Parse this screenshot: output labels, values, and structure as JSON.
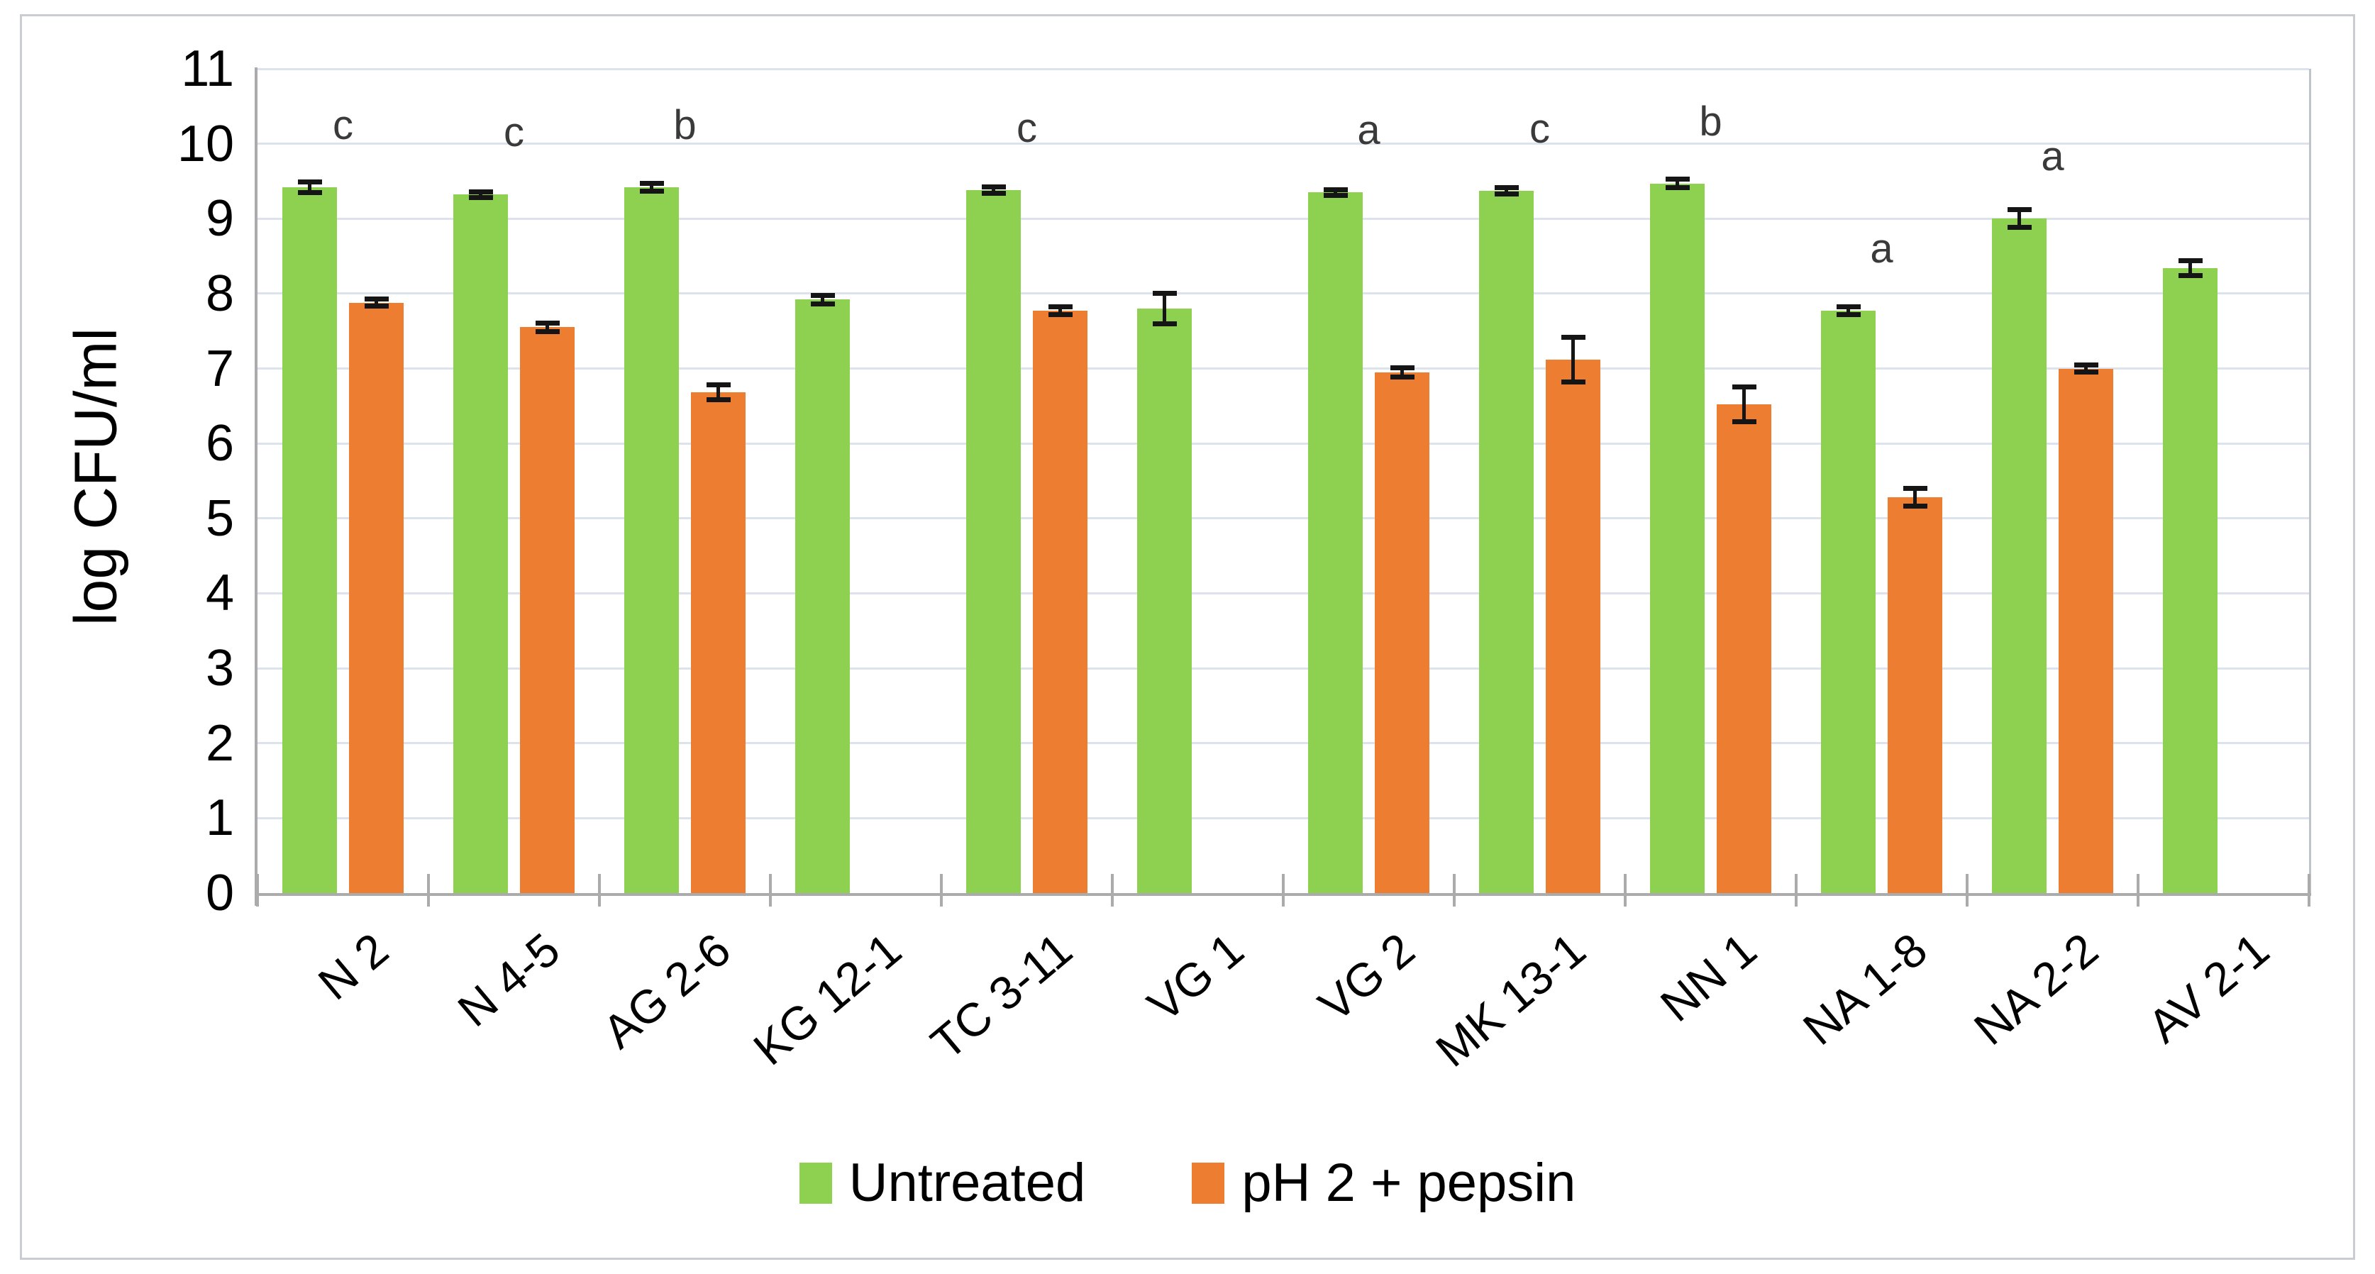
{
  "chart_data": {
    "type": "bar",
    "title": "",
    "xlabel": "",
    "ylabel": "log CFU/ml",
    "ylim": [
      0,
      11
    ],
    "yticks": [
      0,
      1,
      2,
      3,
      4,
      5,
      6,
      7,
      8,
      9,
      10,
      11
    ],
    "grid": true,
    "legend_position": "bottom-center",
    "categories": [
      "N 2",
      "N 4-5",
      "AG 2-6",
      "KG 12-1",
      "TC 3-11",
      "VG 1",
      "VG 2",
      "MK 13-1",
      "NN 1",
      "NA 1-8",
      "NA 2-2",
      "AV 2-1"
    ],
    "series": [
      {
        "name": "Untreated",
        "color": "#8ED04F",
        "values": [
          9.42,
          9.32,
          9.42,
          7.92,
          9.38,
          7.8,
          9.35,
          9.37,
          9.47,
          7.77,
          9.0,
          8.34
        ],
        "errors": [
          0.07,
          0.04,
          0.05,
          0.06,
          0.04,
          0.2,
          0.04,
          0.04,
          0.06,
          0.05,
          0.12,
          0.1
        ]
      },
      {
        "name": "pH 2 + pepsin",
        "color": "#ED7D31",
        "values": [
          7.88,
          7.55,
          6.68,
          null,
          7.77,
          null,
          6.95,
          7.12,
          6.52,
          5.28,
          7.0,
          null
        ],
        "errors": [
          0.05,
          0.06,
          0.1,
          null,
          0.05,
          null,
          0.06,
          0.3,
          0.23,
          0.12,
          0.05,
          null
        ]
      }
    ],
    "significance_letters": [
      "c",
      "c",
      "b",
      "",
      "c",
      "",
      "a",
      "c",
      "b",
      "a",
      "a",
      ""
    ],
    "error_bar_color": "#151515",
    "gridline_color": "#DCE3EC",
    "axis_color": "#ABABAB"
  }
}
